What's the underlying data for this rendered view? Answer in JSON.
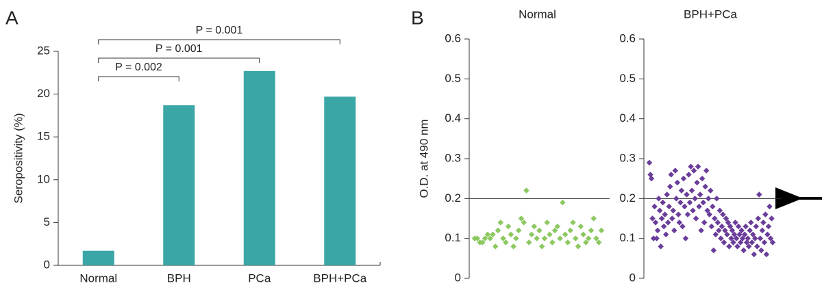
{
  "chart_data": [
    {
      "type": "bar",
      "panel_label": "A",
      "ylabel": "Seropositivity (%)",
      "categories": [
        "Normal",
        "BPH",
        "PCa",
        "BPH+PCa"
      ],
      "values": [
        1.7,
        18.7,
        22.7,
        19.7
      ],
      "color": "#3aa7a6",
      "ylim": [
        0,
        25
      ],
      "yticks": [
        0,
        5,
        10,
        15,
        20,
        25
      ],
      "annotations": [
        {
          "label": "P = 0.002",
          "from": 0,
          "to": 1
        },
        {
          "label": "P = 0.001",
          "from": 0,
          "to": 2
        },
        {
          "label": "P = 0.001",
          "from": 0,
          "to": 3
        }
      ]
    },
    {
      "type": "strip",
      "panel_label": "B",
      "title": "Normal",
      "ylabel": "O.D. at 490 nm",
      "color": "#8cc860",
      "ylim": [
        0,
        0.6
      ],
      "yticks": [
        0,
        0.1,
        0.2,
        0.3,
        0.4,
        0.5,
        0.6
      ],
      "cutoff": 0.2,
      "values": [
        0.1,
        0.1,
        0.09,
        0.09,
        0.1,
        0.11,
        0.1,
        0.11,
        0.08,
        0.12,
        0.14,
        0.1,
        0.09,
        0.13,
        0.11,
        0.08,
        0.1,
        0.12,
        0.15,
        0.14,
        0.22,
        0.09,
        0.11,
        0.13,
        0.1,
        0.12,
        0.08,
        0.1,
        0.14,
        0.11,
        0.09,
        0.12,
        0.13,
        0.1,
        0.19,
        0.11,
        0.09,
        0.12,
        0.14,
        0.1,
        0.08,
        0.13,
        0.11,
        0.09,
        0.1,
        0.12,
        0.15,
        0.1,
        0.09,
        0.12
      ]
    },
    {
      "type": "strip",
      "title": "BPH+PCa",
      "color": "#6a3d9a",
      "ylim": [
        0,
        0.6
      ],
      "yticks": [
        0,
        0.1,
        0.2,
        0.3,
        0.4,
        0.5,
        0.6
      ],
      "cutoff": 0.2,
      "values": [
        0.29,
        0.26,
        0.25,
        0.15,
        0.1,
        0.18,
        0.14,
        0.1,
        0.12,
        0.2,
        0.17,
        0.08,
        0.15,
        0.19,
        0.13,
        0.16,
        0.11,
        0.21,
        0.14,
        0.18,
        0.23,
        0.26,
        0.15,
        0.17,
        0.12,
        0.27,
        0.2,
        0.24,
        0.16,
        0.14,
        0.19,
        0.22,
        0.13,
        0.25,
        0.18,
        0.1,
        0.21,
        0.16,
        0.26,
        0.19,
        0.28,
        0.22,
        0.17,
        0.27,
        0.2,
        0.15,
        0.24,
        0.28,
        0.18,
        0.21,
        0.12,
        0.25,
        0.19,
        0.14,
        0.23,
        0.27,
        0.17,
        0.2,
        0.16,
        0.22,
        0.13,
        0.18,
        0.07,
        0.15,
        0.11,
        0.2,
        0.14,
        0.12,
        0.17,
        0.1,
        0.13,
        0.16,
        0.09,
        0.12,
        0.15,
        0.11,
        0.14,
        0.08,
        0.13,
        0.1,
        0.12,
        0.09,
        0.11,
        0.14,
        0.1,
        0.08,
        0.13,
        0.11,
        0.09,
        0.12,
        0.1,
        0.07,
        0.11,
        0.13,
        0.09,
        0.1,
        0.08,
        0.12,
        0.14,
        0.09,
        0.11,
        0.06,
        0.1,
        0.13,
        0.08,
        0.15,
        0.21,
        0.1,
        0.07,
        0.12,
        0.14,
        0.09,
        0.16,
        0.06,
        0.11,
        0.13,
        0.18,
        0.1,
        0.15,
        0.09
      ]
    }
  ]
}
